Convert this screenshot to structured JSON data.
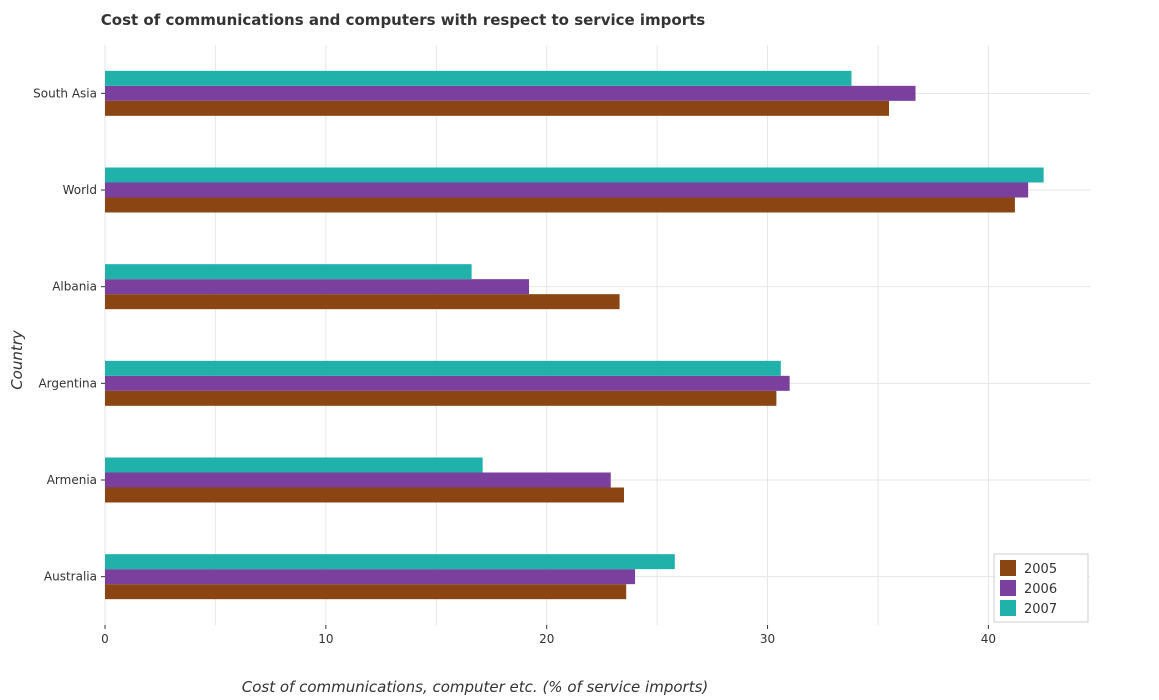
{
  "chart_data": {
    "type": "bar",
    "orientation": "horizontal",
    "title": "Cost of communications and computers with respect to service imports",
    "xlabel": "Cost of communications, computer etc. (% of service imports)",
    "ylabel": "Country",
    "xlim": [
      0,
      44.6
    ],
    "xticks": [
      0,
      10,
      20,
      30,
      40
    ],
    "grid": true,
    "legend_position": "bottom-right",
    "categories": [
      "South Asia",
      "World",
      "Albania",
      "Argentina",
      "Armenia",
      "Australia"
    ],
    "series": [
      {
        "name": "2005",
        "color": "#8B4513",
        "values": [
          35.5,
          41.2,
          23.3,
          30.4,
          23.5,
          23.6
        ]
      },
      {
        "name": "2006",
        "color": "#7B3F9E",
        "values": [
          36.7,
          41.8,
          19.2,
          31.0,
          22.9,
          24.0
        ]
      },
      {
        "name": "2007",
        "color": "#20B2AA",
        "values": [
          33.8,
          42.5,
          16.6,
          30.6,
          17.1,
          25.8
        ]
      }
    ]
  }
}
